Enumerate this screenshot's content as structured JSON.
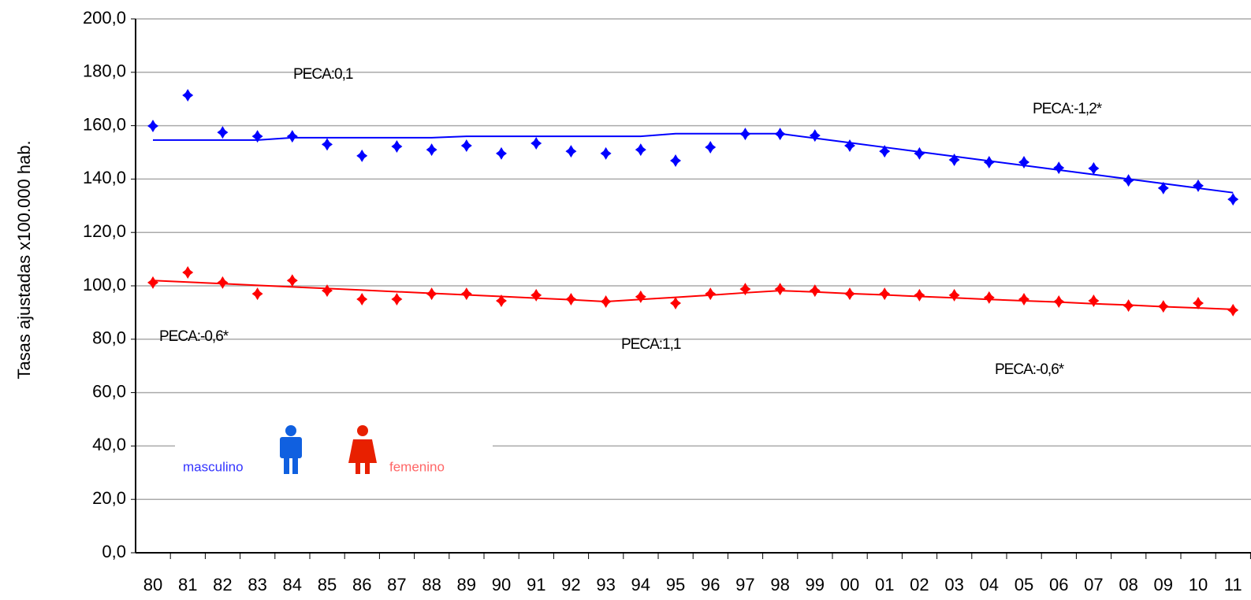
{
  "chart_data": {
    "type": "line",
    "y_label": "Tasas ajustadas x100.000 hab.",
    "categories": [
      "80",
      "81",
      "82",
      "83",
      "84",
      "85",
      "86",
      "87",
      "88",
      "89",
      "90",
      "91",
      "92",
      "93",
      "94",
      "95",
      "96",
      "97",
      "98",
      "99",
      "00",
      "01",
      "02",
      "03",
      "04",
      "05",
      "06",
      "07",
      "08",
      "09",
      "10",
      "11"
    ],
    "ylim": [
      0,
      200
    ],
    "yticks": [
      {
        "value": 0,
        "label": "0,0"
      },
      {
        "value": 20,
        "label": "20,0"
      },
      {
        "value": 40,
        "label": "40,0"
      },
      {
        "value": 60,
        "label": "60,0"
      },
      {
        "value": 80,
        "label": "80,0"
      },
      {
        "value": 100,
        "label": "100,0"
      },
      {
        "value": 120,
        "label": "120,0"
      },
      {
        "value": 140,
        "label": "140,0"
      },
      {
        "value": 160,
        "label": "160,0"
      },
      {
        "value": 180,
        "label": "180,0"
      },
      {
        "value": 200,
        "label": "200,0"
      }
    ],
    "grid": true,
    "series": [
      {
        "name": "masculino",
        "color": "#0000ff",
        "values": [
          159.9,
          171.4,
          157.5,
          156,
          156,
          153,
          148.7,
          152.2,
          151,
          152.5,
          149.6,
          153.4,
          150.4,
          149.6,
          151,
          146.9,
          151.9,
          156.9,
          156.9,
          156.3,
          152.5,
          150.4,
          149.6,
          147.2,
          146.3,
          146.3,
          144.2,
          144,
          139.5,
          136.6,
          137.5,
          132.4
        ],
        "trend": [
          154.6,
          154.6,
          154.6,
          154.6,
          155.5,
          155.5,
          155.5,
          155.5,
          155.5,
          156,
          156,
          156,
          156,
          156,
          156,
          157,
          157,
          157,
          157,
          155.3,
          153.6,
          151.9,
          150.2,
          148.5,
          146.8,
          145.1,
          143.4,
          141.7,
          140,
          138.3,
          136.6,
          134.9
        ]
      },
      {
        "name": "femenino",
        "color": "#ff0000",
        "values": [
          101.2,
          105,
          101.2,
          97,
          102,
          98.2,
          95,
          95,
          97,
          97,
          94.4,
          96.5,
          95,
          94.1,
          95.9,
          93.5,
          97,
          98.8,
          98.8,
          98.2,
          97,
          97,
          96.5,
          96.5,
          95.6,
          95,
          94.1,
          94.4,
          92.6,
          92.3,
          93.5,
          90.9
        ],
        "trend": [
          102,
          101.4,
          100.8,
          100.2,
          99.6,
          99,
          98.4,
          97.8,
          97.2,
          96.6,
          96,
          95.4,
          94.8,
          94.1,
          94.9,
          95.7,
          96.5,
          97.4,
          98.2,
          97.7,
          97.1,
          96.6,
          96,
          95.5,
          94.9,
          94.4,
          93.9,
          93.3,
          92.8,
          92.2,
          91.7,
          91.2
        ]
      }
    ],
    "annotations": [
      "PECA:0,1",
      "PECA:-1,2*",
      "PECA:-0,6*",
      "PECA:1,1",
      "PECA:-0,6*"
    ]
  }
}
